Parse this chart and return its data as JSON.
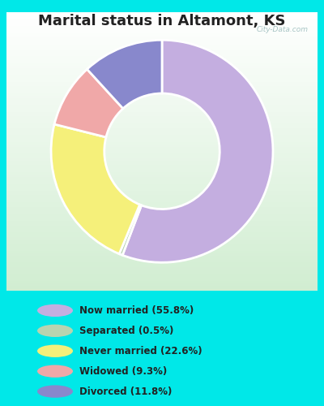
{
  "title": "Marital status in Altamont, KS",
  "slices": [
    {
      "label": "Now married (55.8%)",
      "value": 55.8,
      "color": "#c4aee0"
    },
    {
      "label": "Separated (0.5%)",
      "value": 0.5,
      "color": "#b8d4b0"
    },
    {
      "label": "Never married (22.6%)",
      "value": 22.6,
      "color": "#f5f07a"
    },
    {
      "label": "Widowed (9.3%)",
      "value": 9.3,
      "color": "#f0a8a8"
    },
    {
      "label": "Divorced (11.8%)",
      "value": 11.8,
      "color": "#8888cc"
    }
  ],
  "legend_marker_colors": [
    "#c4aee0",
    "#b8d4b0",
    "#f5f07a",
    "#f0a8a8",
    "#8888cc"
  ],
  "bg_color": "#00e8e8",
  "title_fontsize": 13,
  "watermark": "City-Data.com"
}
